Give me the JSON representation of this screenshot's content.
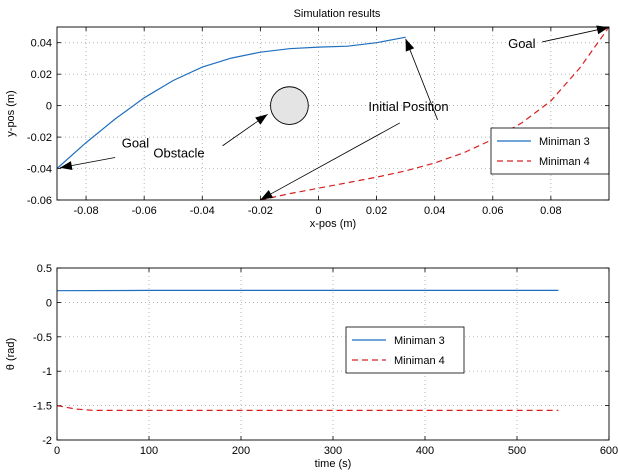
{
  "figure": {
    "title": "Simulation results"
  },
  "chart_data": [
    {
      "type": "line",
      "title": "Simulation results",
      "xlabel": "x-pos (m)",
      "ylabel": "y-pos (m)",
      "xlim": [
        -0.09,
        0.1
      ],
      "ylim": [
        -0.06,
        0.05
      ],
      "xticks": [
        -0.08,
        -0.06,
        -0.04,
        -0.02,
        0,
        0.02,
        0.04,
        0.06,
        0.08
      ],
      "xtick_labels": [
        "-0.08",
        "-0.06",
        "-0.04",
        "-0.02",
        "0",
        "0.02",
        "0.04",
        "0.06",
        "0.08"
      ],
      "yticks": [
        -0.06,
        -0.04,
        -0.02,
        0,
        0.02,
        0.04
      ],
      "ytick_labels": [
        "-0.06",
        "-0.04",
        "-0.02",
        "0",
        "0.02",
        "0.04"
      ],
      "grid": true,
      "legend_position": "bottom-right",
      "series": [
        {
          "name": "Miniman 3",
          "color": "#1f6fbf",
          "style": "solid",
          "x": [
            0.03,
            0.02,
            0.01,
            0.0,
            -0.01,
            -0.02,
            -0.03,
            -0.04,
            -0.05,
            -0.06,
            -0.07,
            -0.08,
            -0.09
          ],
          "y": [
            0.0435,
            0.04,
            0.0378,
            0.0372,
            0.0362,
            0.034,
            0.0302,
            0.0245,
            0.016,
            0.005,
            -0.0085,
            -0.0235,
            -0.04
          ]
        },
        {
          "name": "Miniman 4",
          "color": "#d62020",
          "style": "dashed",
          "x": [
            -0.02,
            -0.01,
            0.0,
            0.01,
            0.02,
            0.03,
            0.04,
            0.05,
            0.06,
            0.07,
            0.08,
            0.09,
            0.1
          ],
          "y": [
            -0.06,
            -0.056,
            -0.0525,
            -0.049,
            -0.0455,
            -0.0415,
            -0.0365,
            -0.03,
            -0.0215,
            -0.011,
            0.003,
            0.024,
            0.05
          ]
        }
      ],
      "obstacle": {
        "cx": -0.01,
        "cy": 0.0,
        "r": 0.0065,
        "fill": "#e4e4e4"
      },
      "annotations": [
        {
          "key": "goal1",
          "text": "Goal",
          "tx": -0.063,
          "ty": -0.0265,
          "ax": -0.07,
          "ay": -0.033,
          "hx": -0.089,
          "hy": -0.0395
        },
        {
          "key": "obstacle",
          "text": "Obstacle",
          "tx": -0.048,
          "ty": -0.033,
          "ax": -0.033,
          "ay": -0.0255,
          "hx": -0.0175,
          "hy": -0.0055
        },
        {
          "key": "initial",
          "text": "Initial Position",
          "tx": 0.031,
          "ty": -0.0035,
          "ax": 0.041,
          "ay": -0.009,
          "hx": 0.03,
          "hy": 0.0425
        },
        {
          "key": "initial2",
          "text": "",
          "tx": 0,
          "ty": 0,
          "ax": 0.028,
          "ay": -0.011,
          "hx": -0.02,
          "hy": -0.0598
        },
        {
          "key": "goal2",
          "text": "Goal",
          "tx": 0.07,
          "ty": 0.0365,
          "ax": 0.077,
          "ay": 0.0405,
          "hx": 0.1,
          "hy": 0.0498
        }
      ]
    },
    {
      "type": "line",
      "title": "",
      "xlabel": "time (s)",
      "ylabel": "θ (rad)",
      "xlim": [
        0,
        600
      ],
      "ylim": [
        -2,
        0.5
      ],
      "xticks": [
        0,
        100,
        200,
        300,
        400,
        500,
        600
      ],
      "xtick_labels": [
        "0",
        "100",
        "200",
        "300",
        "400",
        "500",
        "600"
      ],
      "yticks": [
        -2,
        -1.5,
        -1,
        -0.5,
        0,
        0.5
      ],
      "ytick_labels": [
        "-2",
        "-1.5",
        "-1",
        "-0.5",
        "0",
        "0.5"
      ],
      "grid": true,
      "legend_position": "center-right",
      "series": [
        {
          "name": "Miniman 3",
          "color": "#1f6fbf",
          "style": "solid",
          "x": [
            0,
            100,
            200,
            300,
            400,
            545
          ],
          "y": [
            0.17,
            0.175,
            0.175,
            0.175,
            0.175,
            0.175
          ]
        },
        {
          "name": "Miniman 4",
          "color": "#d62020",
          "style": "dashed",
          "x": [
            0,
            20,
            40,
            100,
            200,
            300,
            400,
            500,
            545
          ],
          "y": [
            -1.5,
            -1.55,
            -1.57,
            -1.57,
            -1.57,
            -1.57,
            -1.57,
            -1.57,
            -1.57
          ]
        }
      ]
    }
  ]
}
